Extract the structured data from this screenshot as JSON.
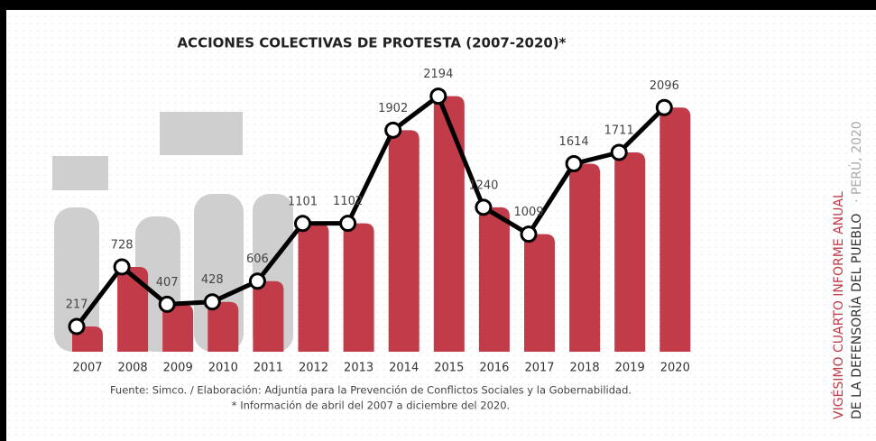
{
  "chart_data": {
    "type": "bar",
    "title": "ACCIONES COLECTIVAS DE PROTESTA (2007-2020)*",
    "categories": [
      "2007",
      "2008",
      "2009",
      "2010",
      "2011",
      "2012",
      "2013",
      "2014",
      "2015",
      "2016",
      "2017",
      "2018",
      "2019",
      "2020"
    ],
    "values": [
      217,
      728,
      407,
      428,
      606,
      1101,
      1102,
      1902,
      2194,
      1240,
      1009,
      1614,
      1711,
      2096
    ],
    "color": "#c13b48",
    "line_color": "#000000",
    "ylim": [
      0,
      2400
    ],
    "notes": [
      "Fuente: Simco. / Elaboración: Adjuntía para la Prevención de Conflictos Sociales y la Gobernabilidad.",
      "* Información de abril del 2007 a diciembre del 2020."
    ],
    "side_text": [
      "VIGÉSIMO CUARTO INFORME ANUAL",
      "DE LA DEFENSORÍA DEL PUEBLO",
      "· PERÚ, 2020"
    ]
  }
}
